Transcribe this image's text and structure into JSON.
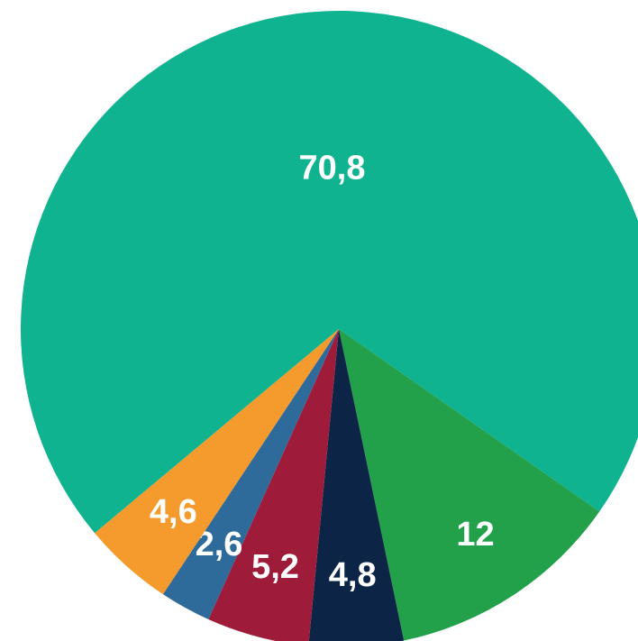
{
  "chart_data": {
    "type": "pie",
    "categories": [
      null,
      null,
      null,
      null,
      null,
      null
    ],
    "values": [
      70.8,
      12,
      4.8,
      5.2,
      2.6,
      4.6
    ],
    "value_labels": [
      "70,8",
      "12",
      "4,8",
      "5,2",
      "2,6",
      "4,6"
    ],
    "colors": [
      "#10b38f",
      "#22a04a",
      "#0c2547",
      "#9e1b3a",
      "#2e6b9a",
      "#f59a2c"
    ]
  }
}
